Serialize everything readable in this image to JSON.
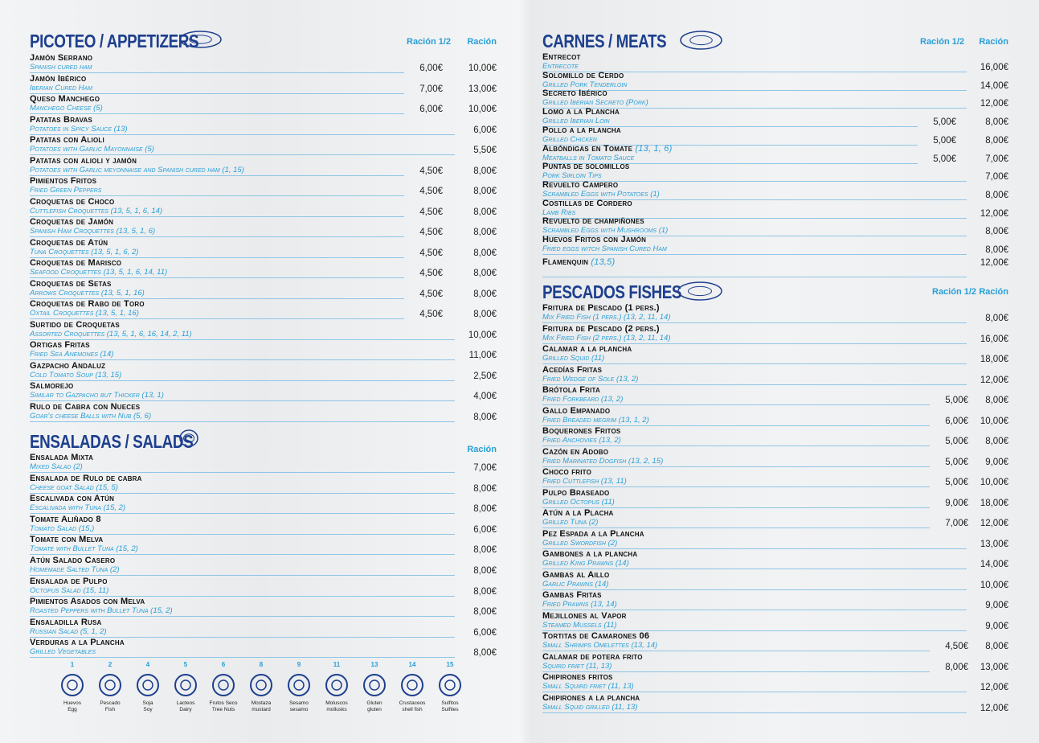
{
  "sections": [
    {
      "title": "PICOTEO / APPETIZERS",
      "col_half": "Ración 1/2",
      "col_full": "Ración",
      "items": [
        {
          "name": "Jamón Serrano",
          "desc": "Spanish cured ham",
          "half": "6,00€",
          "full": "10,00€"
        },
        {
          "name": "Jamón Ibérico",
          "desc": "Iberian Cured Ham",
          "half": "7,00€",
          "full": "13,00€"
        },
        {
          "name": "Queso Manchego",
          "desc": "Manchego Cheese (5)",
          "half": "6,00€",
          "full": "10,00€"
        },
        {
          "name": "Patatas Bravas",
          "desc": "Potatoes in Spicy Sauce (13)",
          "full": "6,00€"
        },
        {
          "name": "Patatas con Alioli",
          "desc": "Potatoes with Garlic Mayonnaise (5)",
          "full": "5,50€"
        },
        {
          "name": "Patatas con alioli y jamón",
          "desc": "Potatoes with Garlic meyonnaise and Spanish cured ham (1, 15)",
          "half": "4,50€",
          "full": "8,00€"
        },
        {
          "name": "Pimientos Fritos",
          "desc": "Fried Green Peppers",
          "half": "4,50€",
          "full": "8,00€"
        },
        {
          "name": "Croquetas de Choco",
          "desc": "Cuttlefish Croquettes (13, 5, 1, 6, 14)",
          "half": "4,50€",
          "full": "8,00€"
        },
        {
          "name": "Croquetas de Jamón",
          "desc": "Spanish Ham Croquettes (13, 5, 1, 6)",
          "half": "4,50€",
          "full": "8,00€"
        },
        {
          "name": "Croquetas de Atún",
          "desc": "Tuna Croquettes (13, 5, 1, 6, 2)",
          "half": "4,50€",
          "full": "8,00€"
        },
        {
          "name": "Croquetas de Marisco",
          "desc": "Seafood Croquettes (13, 5, 1, 6, 14, 11)",
          "half": "4,50€",
          "full": "8,00€"
        },
        {
          "name": "Croquetas de Setas",
          "desc": "Arrows Croquettes (13, 5, 1, 16)",
          "half": "4,50€",
          "full": "8,00€"
        },
        {
          "name": "Croquetas de Rabo de Toro",
          "desc": "Oxtail Croquettes (13, 5, 1, 16)",
          "half": "4,50€",
          "full": "8,00€"
        },
        {
          "name": "Surtido de Croquetas",
          "desc": "Assorted Croquettes (13, 5, 1, 6, 16, 14, 2, 11)",
          "full": "10,00€"
        },
        {
          "name": "Ortigas Fritas",
          "desc": "Fried Sea Anemones (14)",
          "full": "11,00€"
        },
        {
          "name": "Gazpacho Andaluz",
          "desc": "Cold Tomato Soup (13, 15)",
          "full": "2,50€"
        },
        {
          "name": "Salmorejo",
          "desc": "Similar to Gazpacho but Thicker (13, 1)",
          "full": "4,00€"
        },
        {
          "name": "Rulo de Cabra con Nueces",
          "desc": "Goar's cheese Balls with Nub (5, 6)",
          "full": "8,00€"
        }
      ]
    },
    {
      "title": "ENSALADAS / SALADS",
      "col_full": "Ración",
      "items": [
        {
          "name": "Ensalada Mixta",
          "desc": "Mixed Salad (2)",
          "full": "7,00€"
        },
        {
          "name": "Ensalada de Rulo de cabra",
          "desc": "Cheese goat Salad (15, 5)",
          "full": "8,00€"
        },
        {
          "name": "Escalivada con Atún",
          "desc": "Escalivada with Tuna (15, 2)",
          "full": "8,00€"
        },
        {
          "name": "Tomate Aliñado 8",
          "desc": "Tomato Salad (15,)",
          "full": "6,00€"
        },
        {
          "name": "Tomate con Melva",
          "desc": "Tomate with Bullet Tuna (15, 2)",
          "full": "8,00€"
        },
        {
          "name": "Atún Salado Casero",
          "desc": "Homemade Salted Tuna (2)",
          "full": "8,00€"
        },
        {
          "name": "Ensalada de Pulpo",
          "desc": "Octopus Salad (15, 11)",
          "full": "8,00€"
        },
        {
          "name": "Pimientos Asados con Melva",
          "desc": "Roasted Peppers with Bullet Tuna (15, 2)",
          "full": "8,00€"
        },
        {
          "name": "Ensaladilla Rusa",
          "desc": "Russian Salad (5, 1, 2)",
          "full": "6,00€"
        },
        {
          "name": "Verduras a la Plancha",
          "desc": "Grilled Vegetables",
          "full": "8,00€"
        }
      ]
    },
    {
      "title": "CARNES / MEATS",
      "col_half": "Ración 1/2",
      "col_full": "Ración",
      "items": [
        {
          "name": "Entrecot",
          "desc": "Entrecote",
          "full": "16,00€"
        },
        {
          "name": "Solomillo de Cerdo",
          "desc": "Grilled Pork Tenderloin",
          "full": "14,00€"
        },
        {
          "name": "Secreto Ibérico",
          "desc": "Grilled Iberian Secreto (Pork)",
          "full": "12,00€"
        },
        {
          "name": "Lomo a la Plancha",
          "desc": "Grilled Iberian Loin",
          "half": "5,00€",
          "full": "8,00€"
        },
        {
          "name": "Pollo a la plancha",
          "desc": "Grilled Chicken",
          "half": "5,00€",
          "full": "8,00€"
        },
        {
          "name": "Albóndigas en Tomate",
          "note": "(13, 1, 6)",
          "desc": "Meatballs in Tomato Sauce",
          "half": "5,00€",
          "full": "7,00€"
        },
        {
          "name": "Puntas de solomillos",
          "desc": "Pork Sirloin Tips",
          "full": "7,00€"
        },
        {
          "name": "Revuelto Campero",
          "desc": "Scrambled Eggs with Potatoes (1)",
          "full": "8,00€"
        },
        {
          "name": "Costillas de Cordero",
          "desc": "Lamb Ribs",
          "full": "12,00€"
        },
        {
          "name": "Revuelto de champiñones",
          "desc": "Scrambled Eggs with Mushrooms (1)",
          "full": "8,00€"
        },
        {
          "name": "Huevos Fritos con Jamón",
          "desc": "Fried eggs witch Spanish Cured Ham",
          "full": "8,00€"
        },
        {
          "name": "Flamenquin",
          "note": "(13,5)",
          "full": "12,00€"
        }
      ]
    },
    {
      "title": "PESCADOS FISHES",
      "col_half": "Ración 1/2",
      "col_full": "Ración",
      "items": [
        {
          "name": "Fritura de Pescado (1 pers.)",
          "desc": "Mix Fried Fish (1 pers.) (13, 2, 11, 14)",
          "full": "8,00€"
        },
        {
          "name": "Fritura de Pescado (2 pers.)",
          "desc": "Mix Fried Fish (2 pers.) (13, 2, 11, 14)",
          "full": "16,00€"
        },
        {
          "name": "Calamar a la plancha",
          "desc": "Grilled Squid (11)",
          "full": "18,00€"
        },
        {
          "name": "Acedías Fritas",
          "desc": "Fried Wedge of Sole (13, 2)",
          "full": "12,00€"
        },
        {
          "name": "Brótola Frita",
          "desc": "Fried Forkbeard (13, 2)",
          "half": "5,00€",
          "full": "8,00€"
        },
        {
          "name": "Gallo Empanado",
          "desc": "Fried Breaded megrim (13, 1, 2)",
          "half": "6,00€",
          "full": "10,00€"
        },
        {
          "name": "Boquerones Fritos",
          "desc": "Fried Anchovies (13, 2)",
          "half": "5,00€",
          "full": "8,00€"
        },
        {
          "name": "Cazón en Adobo",
          "desc": "Fried Marinated Dogfish (13, 2, 15)",
          "half": "5,00€",
          "full": "9,00€"
        },
        {
          "name": "Choco frito",
          "desc": "Fried Cuttlefish (13, 11)",
          "half": "5,00€",
          "full": "10,00€"
        },
        {
          "name": "Pulpo Braseado",
          "desc": "Grilled Octopus (11)",
          "half": "9,00€",
          "full": "18,00€"
        },
        {
          "name": "Atún a la Placha",
          "desc": "Grilled Tuna (2)",
          "half": "7,00€",
          "full": "12,00€"
        },
        {
          "name": "Pez Espada a la Plancha",
          "desc": "Grilled Swordfish (2)",
          "full": "13,00€"
        },
        {
          "name": "Gambones a la plancha",
          "desc": "Grilled King Prawns (14)",
          "full": "14,00€"
        },
        {
          "name": "Gambas al Aillo",
          "desc": "Garlic Prawns (14)",
          "full": "10,00€"
        },
        {
          "name": "Gambas Fritas",
          "desc": "Fried Prawns (13, 14)",
          "full": "9,00€"
        },
        {
          "name": "Mejillones al Vapor",
          "desc": "Steamed Mussels (11)",
          "full": "9,00€"
        },
        {
          "name": "Tortitas de Camarones 06",
          "desc": "Small Shrimps Omelettes (13, 14)",
          "half": "4,50€",
          "full": "8,00€"
        },
        {
          "name": "Calamar de potera frito",
          "desc": "Squird friet (11, 13)",
          "half": "8,00€",
          "full": "13,00€"
        },
        {
          "name": "Chipirones fritos",
          "desc": "Small Squird friet (11, 13)",
          "full": "12,00€"
        },
        {
          "name": "Chipirones a la plancha",
          "desc": "Small Squid grilled (11, 13)",
          "full": "12,00€"
        }
      ]
    }
  ],
  "allergens": [
    {
      "number": "1",
      "es": "Huevos",
      "en": "Egg"
    },
    {
      "number": "2",
      "es": "Pescado",
      "en": "Fish"
    },
    {
      "number": "4",
      "es": "Soja",
      "en": "Soy"
    },
    {
      "number": "5",
      "es": "Lacteos",
      "en": "Dairy"
    },
    {
      "number": "6",
      "es": "Frutos Seco",
      "en": "Tree Nuts"
    },
    {
      "number": "8",
      "es": "Mostaza",
      "en": "mustard"
    },
    {
      "number": "9",
      "es": "Sesamo",
      "en": "sesamo"
    },
    {
      "number": "11",
      "es": "Moluscos",
      "en": "mollusks"
    },
    {
      "number": "13",
      "es": "Gluten",
      "en": "gluten"
    },
    {
      "number": "14",
      "es": "Crustaceos",
      "en": "shell fish"
    },
    {
      "number": "15",
      "es": "Sulfitos",
      "en": "Sulfites"
    }
  ]
}
